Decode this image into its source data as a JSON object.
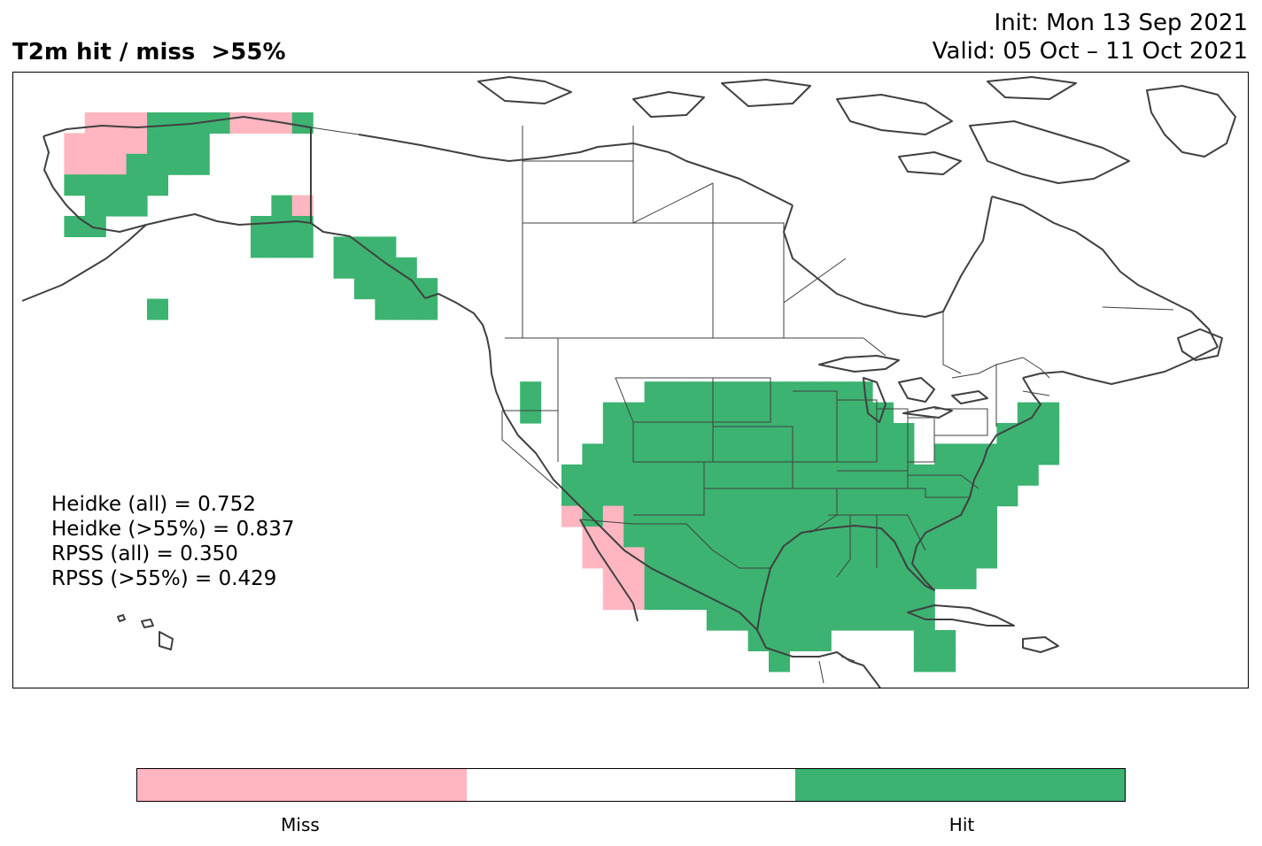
{
  "title": {
    "main": "T2m hit / miss  >55%",
    "init": "Init: Mon 13 Sep 2021",
    "valid": "Valid: 05 Oct – 11 Oct 2021"
  },
  "stats": [
    "Heidke (all) = 0.752",
    "Heidke (>55%) = 0.837",
    "RPSS (all) = 0.350",
    "RPSS (>55%) = 0.429"
  ],
  "legend": {
    "miss_label": "Miss",
    "hit_label": "Hit",
    "miss_color": "#FFB6C1",
    "neutral_color": "#FFFFFF",
    "hit_color": "#3CB371"
  },
  "colors": {
    "coast": "#404040",
    "border": "#404040"
  }
}
